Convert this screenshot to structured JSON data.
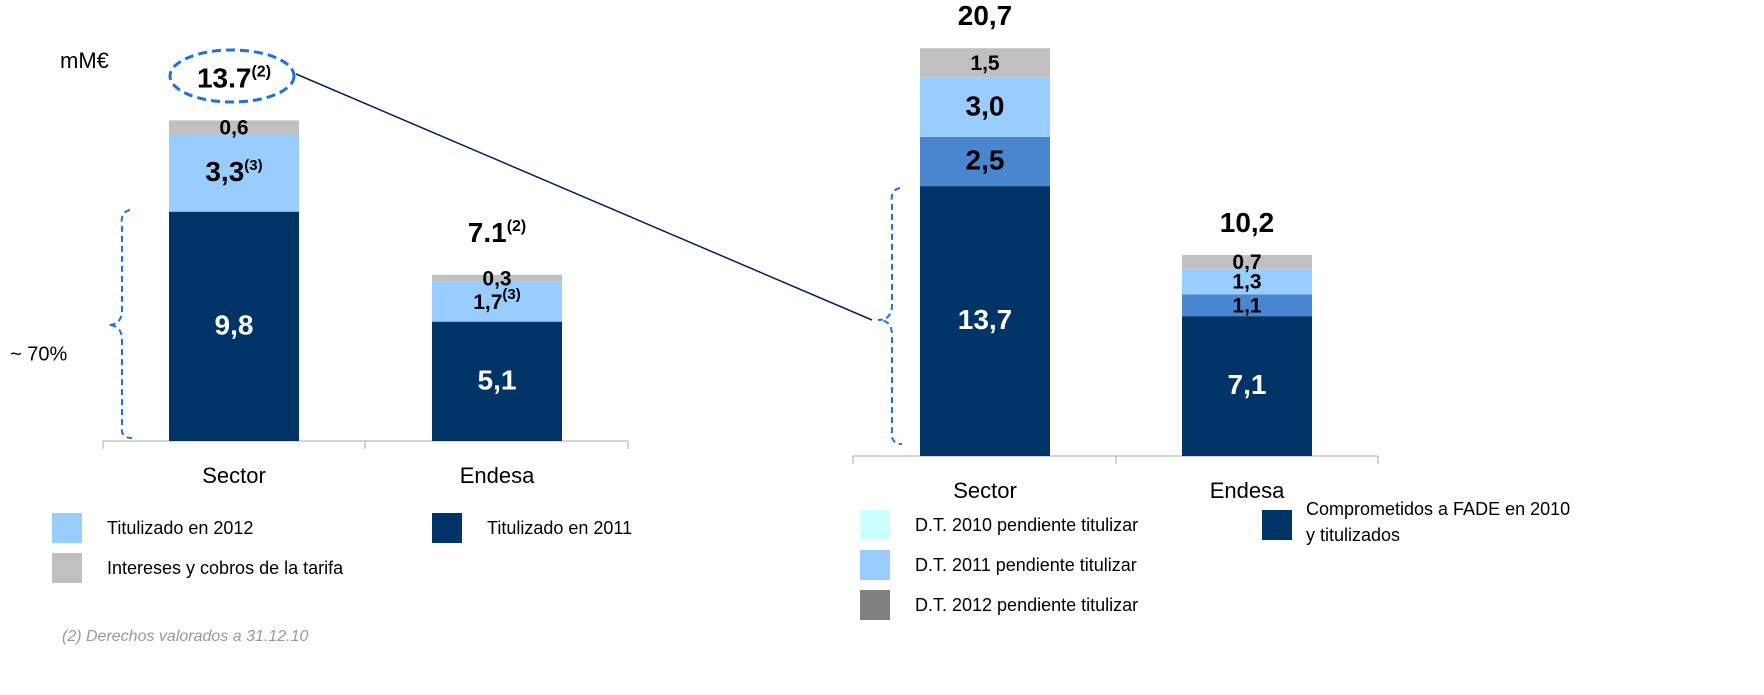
{
  "units": "mM€",
  "share_note": "~ 70%",
  "footnote": "(2) Derechos valorados a 31.12.10",
  "chart_data": [
    {
      "type": "bar",
      "stacked": true,
      "categories": [
        "Sector",
        "Endesa"
      ],
      "series": [
        {
          "name": "Titulizado en 2011",
          "color": "#003366",
          "values": [
            9.8,
            5.1
          ],
          "value_labels": [
            "9,8",
            "5,1"
          ]
        },
        {
          "name": "Titulizado en 2012",
          "color": "#99ccff",
          "values": [
            3.3,
            1.7
          ],
          "value_labels": [
            "3,3",
            "1,7"
          ],
          "value_notes": [
            "(3)",
            "(3)"
          ]
        },
        {
          "name": "Intereses y cobros de la tarifa",
          "color": "#c0c0c0",
          "values": [
            0.6,
            0.3
          ],
          "value_labels": [
            "0,6",
            "0,3"
          ]
        }
      ],
      "totals": [
        13.7,
        7.1
      ],
      "total_labels": [
        "13.7",
        "7.1"
      ],
      "total_notes": [
        "(2)",
        "(2)"
      ]
    },
    {
      "type": "bar",
      "stacked": true,
      "categories": [
        "Sector",
        "Endesa"
      ],
      "series": [
        {
          "name": "Comprometidos a FADE en 2010 y titulizados",
          "color": "#003366",
          "values": [
            13.7,
            7.1
          ],
          "value_labels": [
            "13,7",
            "7,1"
          ]
        },
        {
          "name": "D.T. 2010 pendiente titulizar",
          "color": "#4a86d0",
          "legend_color": "#ccffff",
          "values": [
            2.5,
            1.1
          ],
          "value_labels": [
            "2,5",
            "1,1"
          ]
        },
        {
          "name": "D.T. 2011 pendiente titulizar",
          "color": "#99ccff",
          "values": [
            3.0,
            1.3
          ],
          "value_labels": [
            "3,0",
            "1,3"
          ]
        },
        {
          "name": "D.T. 2012 pendiente titulizar",
          "color": "#c0c0c0",
          "legend_color": "#808080",
          "values": [
            1.5,
            0.7
          ],
          "value_labels": [
            "1,5",
            "0,7"
          ]
        }
      ],
      "totals": [
        20.7,
        10.2
      ],
      "total_labels": [
        "20,7",
        "10,2"
      ]
    }
  ]
}
